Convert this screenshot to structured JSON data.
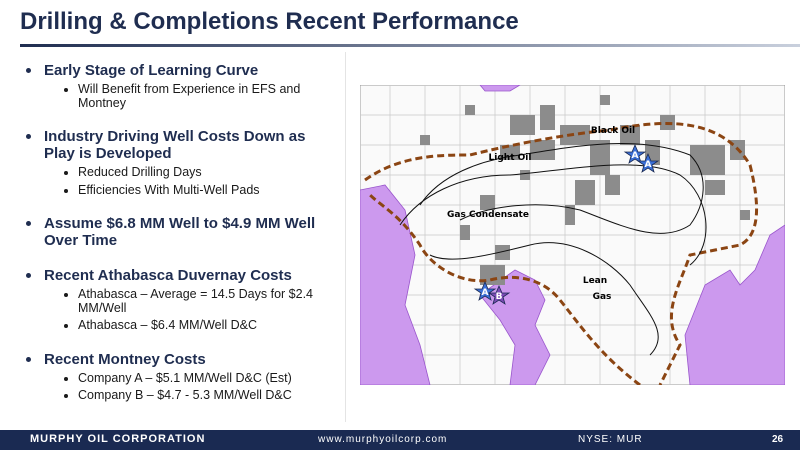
{
  "header": {
    "title": "Drilling & Completions Recent Performance"
  },
  "bullets": [
    {
      "text": "Early Stage of Learning Curve",
      "subs": [
        "Will Benefit from Experience in EFS and Montney"
      ]
    },
    {
      "text": "Industry Driving Well Costs Down as Play is Developed",
      "subs": [
        "Reduced Drilling Days",
        "Efficiencies With Multi-Well Pads"
      ]
    },
    {
      "text": "Assume $6.8 MM Well to $4.9 MM Well Over Time",
      "subs": []
    },
    {
      "text": "Recent Athabasca Duvernay Costs",
      "subs": [
        "Athabasca – Average = 14.5 Days for $2.4 MM/Well",
        "Athabasca – $6.4 MM/Well D&C"
      ]
    },
    {
      "text": "Recent Montney Costs",
      "subs": [
        "Company A – $5.1 MM/Well D&C (Est)",
        "Company B – $4.7 - 5.3 MM/Well D&C"
      ]
    }
  ],
  "map": {
    "labels": [
      "Black Oil",
      "Light Oil",
      "Gas Condensate",
      "Lean",
      "Gas"
    ],
    "markers": [
      "A",
      "A",
      "A",
      "B"
    ]
  },
  "footer": {
    "company": "MURPHY OIL CORPORATION",
    "website": "www.murphyoilcorp.com",
    "ticker": "NYSE: MUR",
    "page": "26"
  }
}
